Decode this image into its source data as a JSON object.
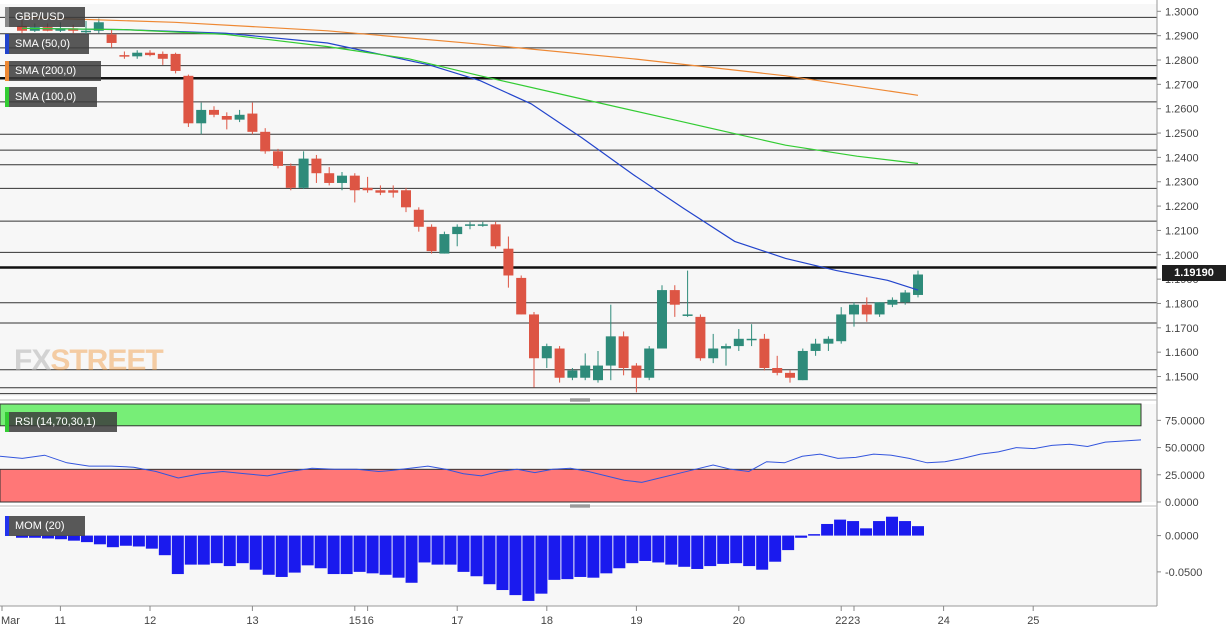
{
  "chart_data": {
    "type": "candlestick",
    "symbol": "GBP/USD",
    "price_panel": {
      "ylim": [
        1.142,
        1.303
      ],
      "y_ticks": [
        "1.3000",
        "1.2900",
        "1.2800",
        "1.2700",
        "1.2600",
        "1.2500",
        "1.2400",
        "1.2300",
        "1.2200",
        "1.2100",
        "1.2000",
        "1.1900",
        "1.1800",
        "1.1700",
        "1.1600",
        "1.1500"
      ],
      "last_price": "1.19190",
      "horizontal_levels": [
        1.2975,
        1.2908,
        1.285,
        1.2777,
        1.2725,
        1.2628,
        1.2495,
        1.243,
        1.237,
        1.2273,
        1.2138,
        1.201,
        1.1948,
        1.1803,
        1.172,
        1.1528,
        1.1454,
        1.143
      ],
      "bold_levels": [
        1.2725,
        1.1948
      ],
      "candles": [
        [
          1.294,
          1.2965,
          1.291,
          1.292
        ],
        [
          1.292,
          1.295,
          1.2915,
          1.2935
        ],
        [
          1.2935,
          1.295,
          1.2918,
          1.292
        ],
        [
          1.292,
          1.2955,
          1.2915,
          1.293
        ],
        [
          1.293,
          1.2945,
          1.291,
          1.292
        ],
        [
          1.292,
          1.296,
          1.2905,
          1.292
        ],
        [
          1.292,
          1.297,
          1.291,
          1.2955
        ],
        [
          1.2905,
          1.2925,
          1.285,
          1.287
        ],
        [
          1.282,
          1.2835,
          1.2805,
          1.2815
        ],
        [
          1.2815,
          1.284,
          1.2805,
          1.283
        ],
        [
          1.283,
          1.284,
          1.2815,
          1.282
        ],
        [
          1.2825,
          1.2835,
          1.278,
          1.2805
        ],
        [
          1.2825,
          1.283,
          1.2745,
          1.2755
        ],
        [
          1.2735,
          1.274,
          1.2525,
          1.254
        ],
        [
          1.254,
          1.2625,
          1.2495,
          1.2595
        ],
        [
          1.2595,
          1.261,
          1.2565,
          1.2575
        ],
        [
          1.257,
          1.2585,
          1.2515,
          1.2555
        ],
        [
          1.2555,
          1.2595,
          1.2545,
          1.2575
        ],
        [
          1.258,
          1.2625,
          1.2495,
          1.2505
        ],
        [
          1.2505,
          1.252,
          1.2415,
          1.2425
        ],
        [
          1.2425,
          1.2435,
          1.2355,
          1.2365
        ],
        [
          1.2365,
          1.2375,
          1.2265,
          1.2275
        ],
        [
          1.2275,
          1.2425,
          1.227,
          1.2395
        ],
        [
          1.2395,
          1.241,
          1.2295,
          1.2335
        ],
        [
          1.2335,
          1.236,
          1.2285,
          1.2295
        ],
        [
          1.2295,
          1.234,
          1.2265,
          1.2325
        ],
        [
          1.2325,
          1.2335,
          1.2215,
          1.2265
        ],
        [
          1.2275,
          1.232,
          1.2255,
          1.2265
        ],
        [
          1.2265,
          1.2285,
          1.2245,
          1.2255
        ],
        [
          1.2265,
          1.2285,
          1.2235,
          1.2255
        ],
        [
          1.2265,
          1.2275,
          1.2175,
          1.2195
        ],
        [
          1.2185,
          1.2195,
          1.2095,
          1.2115
        ],
        [
          1.2115,
          1.2125,
          1.2005,
          1.2015
        ],
        [
          1.2005,
          1.2095,
          1.2005,
          1.2085
        ],
        [
          1.2085,
          1.2125,
          1.2035,
          1.2115
        ],
        [
          1.2125,
          1.2135,
          1.2105,
          1.2125
        ],
        [
          1.2125,
          1.2135,
          1.2115,
          1.2125
        ],
        [
          1.2125,
          1.2135,
          1.2025,
          1.2035
        ],
        [
          1.2025,
          1.2075,
          1.1865,
          1.1915
        ],
        [
          1.1905,
          1.1915,
          1.1755,
          1.1755
        ],
        [
          1.1755,
          1.1765,
          1.1455,
          1.1575
        ],
        [
          1.1575,
          1.1635,
          1.1535,
          1.1625
        ],
        [
          1.1615,
          1.1625,
          1.1475,
          1.1495
        ],
        [
          1.1495,
          1.1535,
          1.1485,
          1.1525
        ],
        [
          1.1495,
          1.1595,
          1.1485,
          1.1545
        ],
        [
          1.1485,
          1.1605,
          1.1475,
          1.1545
        ],
        [
          1.1545,
          1.1795,
          1.1485,
          1.1665
        ],
        [
          1.1665,
          1.1685,
          1.1505,
          1.1535
        ],
        [
          1.1545,
          1.1555,
          1.1435,
          1.1495
        ],
        [
          1.1495,
          1.1625,
          1.1485,
          1.1615
        ],
        [
          1.1615,
          1.1875,
          1.1615,
          1.1855
        ],
        [
          1.1855,
          1.1875,
          1.1745,
          1.1795
        ],
        [
          1.1755,
          1.1935,
          1.1745,
          1.1755
        ],
        [
          1.1745,
          1.1755,
          1.1565,
          1.1575
        ],
        [
          1.1575,
          1.1675,
          1.1555,
          1.1615
        ],
        [
          1.1615,
          1.1635,
          1.1545,
          1.1625
        ],
        [
          1.1625,
          1.1695,
          1.1605,
          1.1655
        ],
        [
          1.1655,
          1.1715,
          1.1625,
          1.1655
        ],
        [
          1.1655,
          1.1675,
          1.1525,
          1.1535
        ],
        [
          1.1535,
          1.1585,
          1.1505,
          1.1515
        ],
        [
          1.1515,
          1.1525,
          1.1475,
          1.1495
        ],
        [
          1.1485,
          1.1615,
          1.1485,
          1.1605
        ],
        [
          1.1605,
          1.1655,
          1.1585,
          1.1635
        ],
        [
          1.1635,
          1.1665,
          1.1605,
          1.1655
        ],
        [
          1.1645,
          1.1785,
          1.1635,
          1.1755
        ],
        [
          1.1755,
          1.1805,
          1.1705,
          1.1795
        ],
        [
          1.1795,
          1.1825,
          1.1725,
          1.1755
        ],
        [
          1.1755,
          1.1805,
          1.1745,
          1.1805
        ],
        [
          1.1795,
          1.1825,
          1.1785,
          1.1815
        ],
        [
          1.1805,
          1.1855,
          1.1795,
          1.1845
        ],
        [
          1.1835,
          1.1935,
          1.1825,
          1.1919
        ]
      ],
      "sma": [
        {
          "label": "SMA (50,0)",
          "color": "#2244cc",
          "values": [
            [
              0,
              1.293
            ],
            [
              10,
              1.2925
            ],
            [
              20,
              1.291
            ],
            [
              30,
              1.287
            ],
            [
              40,
              1.278
            ],
            [
              45,
              1.2715
            ],
            [
              50,
              1.262
            ],
            [
              55,
              1.248
            ],
            [
              60,
              1.233
            ],
            [
              65,
              1.219
            ],
            [
              70,
              1.2055
            ],
            [
              75,
              1.1985
            ],
            [
              80,
              1.1935
            ],
            [
              85,
              1.1895
            ],
            [
              88,
              1.1855
            ]
          ]
        },
        {
          "label": "SMA (200,0)",
          "color": "#ee8833",
          "values": [
            [
              0,
              1.2975
            ],
            [
              15,
              1.2955
            ],
            [
              30,
              1.292
            ],
            [
              45,
              1.2865
            ],
            [
              60,
              1.2805
            ],
            [
              75,
              1.2735
            ],
            [
              88,
              1.2655
            ]
          ]
        },
        {
          "label": "SMA (100,0)",
          "color": "#33cc33",
          "values": [
            [
              0,
              1.293
            ],
            [
              10,
              1.2925
            ],
            [
              20,
              1.2905
            ],
            [
              30,
              1.2855
            ],
            [
              38,
              1.2805
            ],
            [
              45,
              1.2735
            ],
            [
              55,
              1.264
            ],
            [
              65,
              1.2545
            ],
            [
              75,
              1.245
            ],
            [
              82,
              1.2405
            ],
            [
              88,
              1.2375
            ]
          ]
        }
      ]
    },
    "rsi_panel": {
      "label": "RSI (14,70,30,1)",
      "ylim": [
        0,
        90
      ],
      "y_ticks": [
        "75.0000",
        "50.0000",
        "25.0000",
        "0.0000"
      ],
      "overbought": 70,
      "oversold": 30,
      "values": [
        [
          0,
          42
        ],
        [
          5,
          40
        ],
        [
          10,
          43
        ],
        [
          15,
          36
        ],
        [
          20,
          33
        ],
        [
          25,
          33
        ],
        [
          30,
          32
        ],
        [
          35,
          28
        ],
        [
          40,
          22
        ],
        [
          45,
          26
        ],
        [
          50,
          28
        ],
        [
          55,
          26
        ],
        [
          60,
          24
        ],
        [
          65,
          28
        ],
        [
          70,
          31
        ],
        [
          75,
          30
        ],
        [
          80,
          30
        ],
        [
          85,
          28
        ],
        [
          88,
          29
        ],
        [
          92,
          31
        ],
        [
          96,
          33
        ],
        [
          100,
          30
        ],
        [
          104,
          26
        ],
        [
          108,
          24
        ],
        [
          112,
          28
        ],
        [
          116,
          30
        ],
        [
          120,
          27
        ],
        [
          124,
          30
        ],
        [
          128,
          31
        ],
        [
          132,
          28
        ],
        [
          136,
          24
        ],
        [
          140,
          20
        ],
        [
          144,
          18
        ],
        [
          148,
          22
        ],
        [
          152,
          26
        ],
        [
          156,
          30
        ],
        [
          160,
          34
        ],
        [
          164,
          30
        ],
        [
          168,
          28
        ],
        [
          172,
          37
        ],
        [
          176,
          36
        ],
        [
          180,
          42
        ],
        [
          184,
          44
        ],
        [
          188,
          40
        ],
        [
          192,
          41
        ],
        [
          196,
          44
        ],
        [
          200,
          43
        ],
        [
          204,
          40
        ],
        [
          208,
          36
        ],
        [
          212,
          37
        ],
        [
          216,
          40
        ],
        [
          220,
          44
        ],
        [
          224,
          46
        ],
        [
          228,
          50
        ],
        [
          232,
          49
        ],
        [
          236,
          52
        ],
        [
          240,
          53
        ],
        [
          244,
          51
        ],
        [
          248,
          55
        ],
        [
          252,
          56
        ],
        [
          256,
          57
        ]
      ]
    },
    "mom_panel": {
      "label": "MOM (20)",
      "ylim": [
        -0.097,
        0.038
      ],
      "y_ticks": [
        "0.0000",
        "-0.0500"
      ],
      "values": [
        -0.003,
        -0.003,
        -0.004,
        -0.005,
        -0.007,
        -0.009,
        -0.012,
        -0.016,
        -0.014,
        -0.015,
        -0.018,
        -0.027,
        -0.053,
        -0.04,
        -0.04,
        -0.038,
        -0.042,
        -0.038,
        -0.047,
        -0.054,
        -0.057,
        -0.051,
        -0.041,
        -0.045,
        -0.053,
        -0.053,
        -0.05,
        -0.052,
        -0.054,
        -0.058,
        -0.065,
        -0.037,
        -0.04,
        -0.04,
        -0.05,
        -0.056,
        -0.067,
        -0.075,
        -0.082,
        -0.09,
        -0.08,
        -0.061,
        -0.06,
        -0.057,
        -0.058,
        -0.052,
        -0.045,
        -0.038,
        -0.035,
        -0.037,
        -0.04,
        -0.043,
        -0.046,
        -0.042,
        -0.039,
        -0.038,
        -0.042,
        -0.047,
        -0.036,
        -0.02,
        -0.003,
        0.002,
        0.016,
        0.022,
        0.02,
        0.01,
        0.02,
        0.026,
        0.02,
        0.013
      ]
    },
    "x_labels": [
      "Mar",
      "11",
      "12",
      "13",
      "15",
      "16",
      "17",
      "18",
      "19",
      "20",
      "22",
      "23",
      "24",
      "25"
    ],
    "x_label_positions": [
      0,
      3,
      10,
      18,
      26,
      27,
      34,
      41,
      48,
      56,
      64,
      65,
      72,
      79
    ]
  }
}
